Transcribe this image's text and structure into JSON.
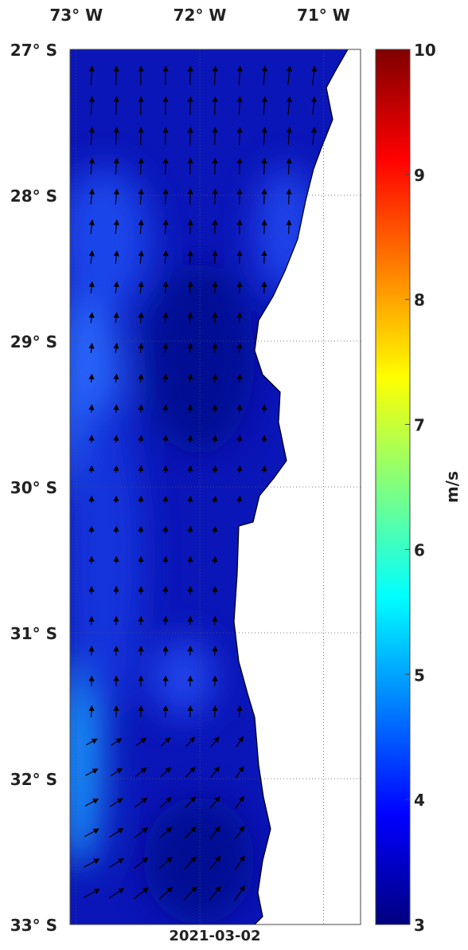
{
  "map": {
    "lon_range": [
      -73.05,
      -70.7
    ],
    "lat_range": [
      -27,
      -33
    ],
    "lon_ticks": [
      {
        "value": -73,
        "label": "73° W"
      },
      {
        "value": -72,
        "label": "72° W"
      },
      {
        "value": -71,
        "label": "71° W"
      }
    ],
    "lat_ticks": [
      {
        "value": -27,
        "label": "27° S"
      },
      {
        "value": -28,
        "label": "28° S"
      },
      {
        "value": -29,
        "label": "29° S"
      },
      {
        "value": -30,
        "label": "30° S"
      },
      {
        "value": -31,
        "label": "31° S"
      },
      {
        "value": -32,
        "label": "32° S"
      },
      {
        "value": -33,
        "label": "33° S"
      }
    ],
    "colorbar": {
      "label": "m/s",
      "range": [
        3,
        10
      ],
      "ticks": [
        3,
        4,
        5,
        6,
        7,
        8,
        9,
        10
      ],
      "colormap": "jet"
    },
    "date": "2021-03-02"
  }
}
